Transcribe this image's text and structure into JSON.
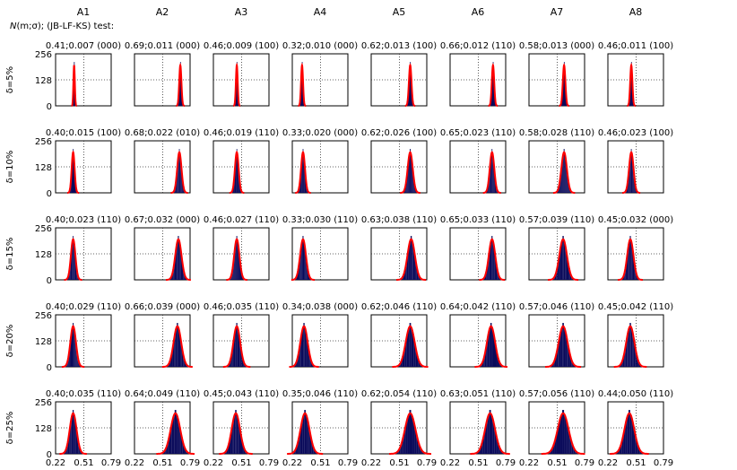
{
  "figure": {
    "legend_line": "N(m;σ);  (JB-LF-KS) test:",
    "legend_prefix": "N",
    "legend_rest": "(m;σ);  (JB-LF-KS) test:",
    "columns": [
      "A1",
      "A2",
      "A3",
      "A4",
      "A5",
      "A6",
      "A7",
      "A8"
    ],
    "rows": [
      "δ=5%",
      "δ=10%",
      "δ=15%",
      "δ=20%",
      "δ=25%"
    ],
    "y_ticks": [
      "256",
      "128",
      "0"
    ],
    "x_ticks": [
      "0.22",
      "0.51",
      "0.79"
    ],
    "colors": {
      "bar": "#0a0a5a",
      "fit": "#ff0000",
      "guide": "#333333"
    }
  },
  "chart_data": {
    "type": "histogram-grid",
    "xlim": [
      0.22,
      0.79
    ],
    "ylim": [
      0,
      256
    ],
    "x_reference": 0.51,
    "grid": "dotted guides at x=0.51 and y=128",
    "panels": [
      [
        {
          "label": "0.41;0.007  (000)",
          "mean": 0.41,
          "sd": 0.007
        },
        {
          "label": "0.69;0.011  (000)",
          "mean": 0.69,
          "sd": 0.011
        },
        {
          "label": "0.46;0.009  (100)",
          "mean": 0.46,
          "sd": 0.009
        },
        {
          "label": "0.32;0.010  (000)",
          "mean": 0.32,
          "sd": 0.01
        },
        {
          "label": "0.62;0.013  (100)",
          "mean": 0.62,
          "sd": 0.013
        },
        {
          "label": "0.66;0.012  (110)",
          "mean": 0.66,
          "sd": 0.012
        },
        {
          "label": "0.58;0.013  (000)",
          "mean": 0.58,
          "sd": 0.013
        },
        {
          "label": "0.46;0.011  (100)",
          "mean": 0.46,
          "sd": 0.011
        }
      ],
      [
        {
          "label": "0.40;0.015  (100)",
          "mean": 0.4,
          "sd": 0.015
        },
        {
          "label": "0.68;0.022  (010)",
          "mean": 0.68,
          "sd": 0.022
        },
        {
          "label": "0.46;0.019  (110)",
          "mean": 0.46,
          "sd": 0.019
        },
        {
          "label": "0.33;0.020  (000)",
          "mean": 0.33,
          "sd": 0.02
        },
        {
          "label": "0.62;0.026  (100)",
          "mean": 0.62,
          "sd": 0.026
        },
        {
          "label": "0.65;0.023  (110)",
          "mean": 0.65,
          "sd": 0.023
        },
        {
          "label": "0.58;0.028  (110)",
          "mean": 0.58,
          "sd": 0.028
        },
        {
          "label": "0.46;0.023  (100)",
          "mean": 0.46,
          "sd": 0.023
        }
      ],
      [
        {
          "label": "0.40;0.023  (110)",
          "mean": 0.4,
          "sd": 0.023
        },
        {
          "label": "0.67;0.032  (000)",
          "mean": 0.67,
          "sd": 0.032
        },
        {
          "label": "0.46;0.027  (110)",
          "mean": 0.46,
          "sd": 0.027
        },
        {
          "label": "0.33;0.030  (110)",
          "mean": 0.33,
          "sd": 0.03
        },
        {
          "label": "0.63;0.038  (110)",
          "mean": 0.63,
          "sd": 0.038
        },
        {
          "label": "0.65;0.033  (110)",
          "mean": 0.65,
          "sd": 0.033
        },
        {
          "label": "0.57;0.039  (110)",
          "mean": 0.57,
          "sd": 0.039
        },
        {
          "label": "0.45;0.032  (000)",
          "mean": 0.45,
          "sd": 0.032
        }
      ],
      [
        {
          "label": "0.40;0.029  (110)",
          "mean": 0.4,
          "sd": 0.029
        },
        {
          "label": "0.66;0.039  (000)",
          "mean": 0.66,
          "sd": 0.039
        },
        {
          "label": "0.46;0.035  (110)",
          "mean": 0.46,
          "sd": 0.035
        },
        {
          "label": "0.34;0.038  (000)",
          "mean": 0.34,
          "sd": 0.038
        },
        {
          "label": "0.62;0.046  (110)",
          "mean": 0.62,
          "sd": 0.046
        },
        {
          "label": "0.64;0.042  (110)",
          "mean": 0.64,
          "sd": 0.042
        },
        {
          "label": "0.57;0.046  (110)",
          "mean": 0.57,
          "sd": 0.046
        },
        {
          "label": "0.45;0.042  (110)",
          "mean": 0.45,
          "sd": 0.042
        }
      ],
      [
        {
          "label": "0.40;0.035  (110)",
          "mean": 0.4,
          "sd": 0.035
        },
        {
          "label": "0.64;0.049  (110)",
          "mean": 0.64,
          "sd": 0.049
        },
        {
          "label": "0.45;0.043  (110)",
          "mean": 0.45,
          "sd": 0.043
        },
        {
          "label": "0.35;0.046  (110)",
          "mean": 0.35,
          "sd": 0.046
        },
        {
          "label": "0.62;0.054  (110)",
          "mean": 0.62,
          "sd": 0.054
        },
        {
          "label": "0.63;0.051  (110)",
          "mean": 0.63,
          "sd": 0.051
        },
        {
          "label": "0.57;0.056  (110)",
          "mean": 0.57,
          "sd": 0.056
        },
        {
          "label": "0.44;0.050  (110)",
          "mean": 0.44,
          "sd": 0.05
        }
      ]
    ]
  }
}
